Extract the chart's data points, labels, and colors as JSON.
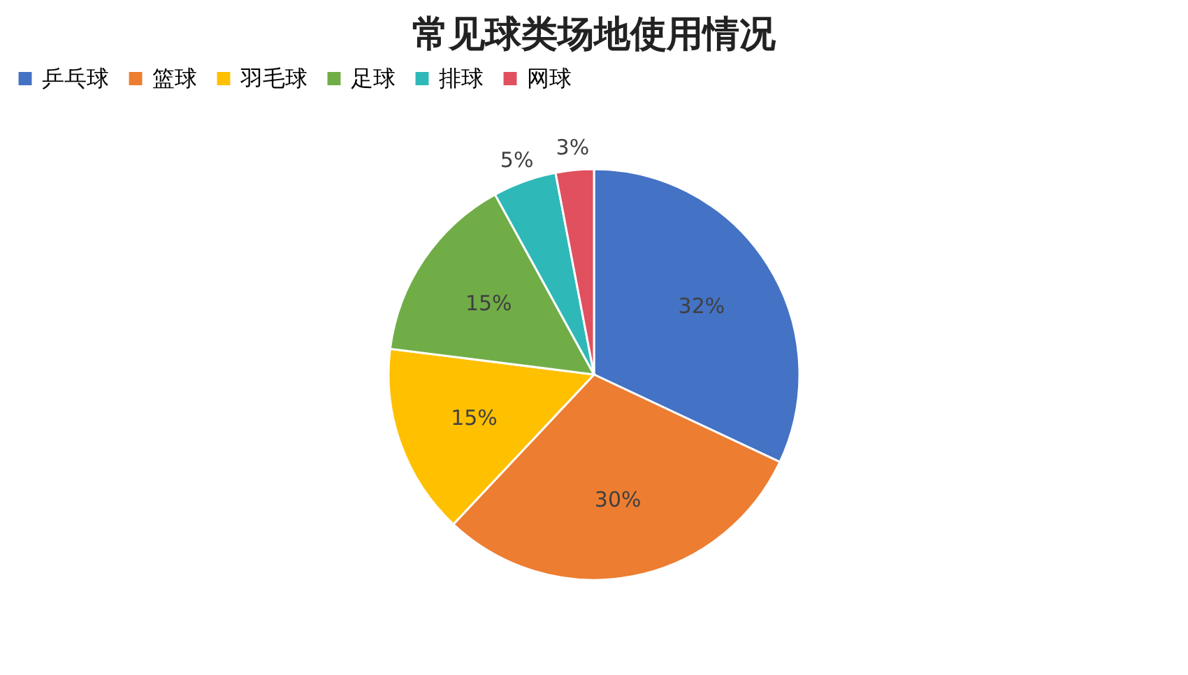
{
  "chart_data": {
    "type": "pie",
    "title": "常见球类场地使用情况",
    "categories": [
      "乒乓球",
      "篮球",
      "羽毛球",
      "足球",
      "排球",
      "网球"
    ],
    "values": [
      32,
      30,
      15,
      15,
      5,
      3
    ],
    "colors": [
      "#4472c4",
      "#ed7d31",
      "#ffc000",
      "#70ad47",
      "#2fb8b8",
      "#e0505e"
    ],
    "value_labels": [
      "32%",
      "30%",
      "15%",
      "15%",
      "5%",
      "3%"
    ],
    "legend": "top"
  }
}
